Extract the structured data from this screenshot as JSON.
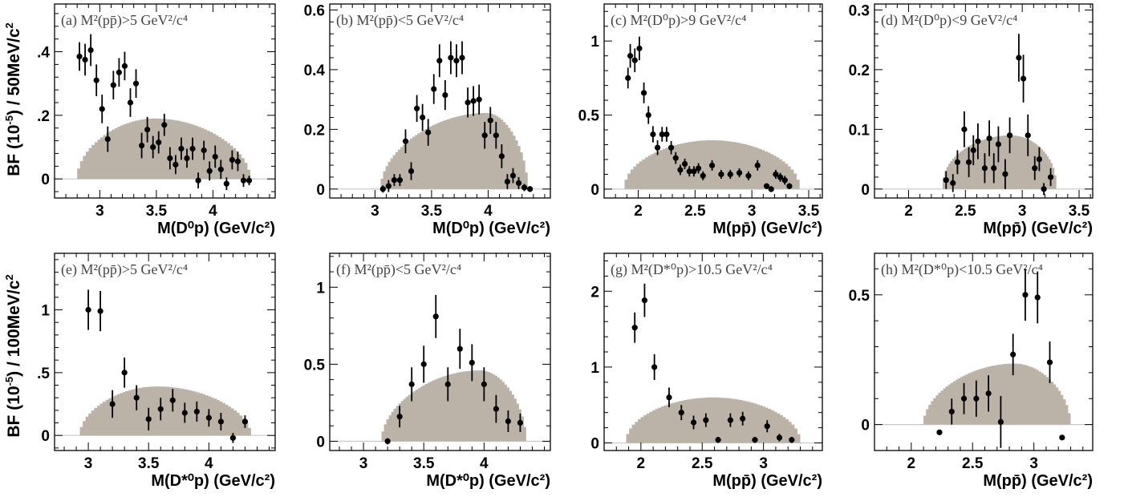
{
  "figure": {
    "ylabel_top_a": "BF (10",
    "ylabel_top_exp": "-5",
    "ylabel_top_b": ") / 50MeV/c",
    "ylabel_top_c": "2",
    "ylabel_bot_a": "BF (10",
    "ylabel_bot_exp": "-5",
    "ylabel_bot_b": ") / 100MeV/c",
    "ylabel_bot_c": "2"
  },
  "colors": {
    "band": "#bcb3a8",
    "band_edge": "#c8c8c8",
    "marker": "#000000"
  },
  "chart_data": [
    {
      "type": "scatter",
      "panel": "a",
      "label": "(a) M²(pp̄)>5 GeV²/c⁴",
      "xlabel": "M(D⁰p) (GeV/c²)",
      "xlim": [
        2.6,
        4.55
      ],
      "ylim": [
        -0.06,
        0.55
      ],
      "xticks": [
        {
          "v": 3,
          "t": "3"
        },
        {
          "v": 3.5,
          "t": "3.5"
        },
        {
          "v": 4,
          "t": "4"
        }
      ],
      "yticks": [
        {
          "v": 0,
          "t": "0"
        },
        {
          "v": 0.2,
          "t": ".2"
        },
        {
          "v": 0.4,
          "t": ".4"
        }
      ],
      "band": {
        "x0": 2.8,
        "x1": 4.33,
        "peak": 0.19,
        "skew": 0.45,
        "pow": 0.5
      },
      "points": [
        [
          2.82,
          0.385,
          0.045
        ],
        [
          2.87,
          0.375,
          0.05
        ],
        [
          2.92,
          0.405,
          0.05
        ],
        [
          2.97,
          0.31,
          0.05
        ],
        [
          3.02,
          0.22,
          0.045
        ],
        [
          3.07,
          0.125,
          0.04
        ],
        [
          3.12,
          0.295,
          0.045
        ],
        [
          3.17,
          0.335,
          0.045
        ],
        [
          3.22,
          0.355,
          0.045
        ],
        [
          3.27,
          0.24,
          0.045
        ],
        [
          3.32,
          0.3,
          0.045
        ],
        [
          3.37,
          0.105,
          0.04
        ],
        [
          3.42,
          0.155,
          0.04
        ],
        [
          3.47,
          0.1,
          0.035
        ],
        [
          3.52,
          0.115,
          0.035
        ],
        [
          3.57,
          0.17,
          0.035
        ],
        [
          3.62,
          0.065,
          0.035
        ],
        [
          3.67,
          0.045,
          0.03
        ],
        [
          3.72,
          0.095,
          0.035
        ],
        [
          3.77,
          0.065,
          0.03
        ],
        [
          3.82,
          0.095,
          0.035
        ],
        [
          3.87,
          -0.005,
          0.025
        ],
        [
          3.92,
          0.09,
          0.03
        ],
        [
          3.97,
          0.025,
          0.03
        ],
        [
          4.02,
          0.07,
          0.035
        ],
        [
          4.07,
          0.03,
          0.03
        ],
        [
          4.12,
          -0.015,
          0.02
        ],
        [
          4.17,
          0.06,
          0.03
        ],
        [
          4.22,
          0.055,
          0.03
        ],
        [
          4.27,
          -0.005,
          0.02
        ],
        [
          4.32,
          -0.005,
          0.015
        ]
      ]
    },
    {
      "type": "scatter",
      "panel": "b",
      "label": "(b) M²(pp̄)<5 GeV²/c⁴",
      "xlabel": "M(D⁰p) (GeV/c²)",
      "xlim": [
        2.6,
        4.55
      ],
      "ylim": [
        -0.03,
        0.62
      ],
      "xticks": [
        {
          "v": 3,
          "t": "3"
        },
        {
          "v": 3.5,
          "t": "3.5"
        },
        {
          "v": 4,
          "t": "4"
        }
      ],
      "yticks": [
        {
          "v": 0,
          "t": "0"
        },
        {
          "v": 0.2,
          "t": "0.2"
        },
        {
          "v": 0.4,
          "t": "0.4"
        },
        {
          "v": 0.6,
          "t": "0.6"
        }
      ],
      "band": {
        "x0": 3.05,
        "x1": 4.35,
        "peak": 0.255,
        "skew": 0.72,
        "pow": 0.5
      },
      "points": [
        [
          3.07,
          0.0,
          0.012
        ],
        [
          3.12,
          0.01,
          0.02
        ],
        [
          3.17,
          0.03,
          0.02
        ],
        [
          3.22,
          0.03,
          0.02
        ],
        [
          3.27,
          0.16,
          0.04
        ],
        [
          3.32,
          0.06,
          0.03
        ],
        [
          3.37,
          0.27,
          0.045
        ],
        [
          3.42,
          0.24,
          0.045
        ],
        [
          3.47,
          0.19,
          0.045
        ],
        [
          3.52,
          0.335,
          0.05
        ],
        [
          3.57,
          0.43,
          0.055
        ],
        [
          3.62,
          0.315,
          0.05
        ],
        [
          3.67,
          0.44,
          0.055
        ],
        [
          3.72,
          0.43,
          0.055
        ],
        [
          3.77,
          0.44,
          0.055
        ],
        [
          3.82,
          0.29,
          0.05
        ],
        [
          3.87,
          0.295,
          0.05
        ],
        [
          3.92,
          0.3,
          0.05
        ],
        [
          3.97,
          0.18,
          0.045
        ],
        [
          4.02,
          0.23,
          0.045
        ],
        [
          4.07,
          0.18,
          0.045
        ],
        [
          4.12,
          0.11,
          0.04
        ],
        [
          4.17,
          0.025,
          0.025
        ],
        [
          4.22,
          0.045,
          0.025
        ],
        [
          4.27,
          0.02,
          0.02
        ],
        [
          4.32,
          0.005,
          0.012
        ],
        [
          4.37,
          0.0,
          0.01
        ]
      ]
    },
    {
      "type": "scatter",
      "panel": "c",
      "label": "(c) M²(D⁰p)>9 GeV²/c⁴",
      "xlabel": "M(pp̄) (GeV/c²)",
      "xlim": [
        1.7,
        3.62
      ],
      "ylim": [
        -0.06,
        1.25
      ],
      "xticks": [
        {
          "v": 2,
          "t": "2"
        },
        {
          "v": 2.5,
          "t": "2.5"
        },
        {
          "v": 3,
          "t": "3"
        },
        {
          "v": 3.5,
          "t": "3.5"
        }
      ],
      "yticks": [
        {
          "v": 0,
          "t": "0"
        },
        {
          "v": 0.5,
          "t": "0.5"
        },
        {
          "v": 1,
          "t": "1"
        }
      ],
      "band": {
        "x0": 1.88,
        "x1": 3.42,
        "peak": 0.33,
        "skew": 0.5,
        "pow": 0.45
      },
      "points": [
        [
          1.91,
          0.75,
          0.07
        ],
        [
          1.93,
          0.9,
          0.08
        ],
        [
          1.97,
          0.87,
          0.08
        ],
        [
          2.01,
          0.95,
          0.08
        ],
        [
          2.05,
          0.65,
          0.07
        ],
        [
          2.09,
          0.5,
          0.06
        ],
        [
          2.13,
          0.37,
          0.055
        ],
        [
          2.17,
          0.28,
          0.05
        ],
        [
          2.21,
          0.37,
          0.05
        ],
        [
          2.25,
          0.37,
          0.05
        ],
        [
          2.29,
          0.28,
          0.045
        ],
        [
          2.33,
          0.21,
          0.04
        ],
        [
          2.37,
          0.13,
          0.035
        ],
        [
          2.41,
          0.17,
          0.035
        ],
        [
          2.45,
          0.12,
          0.035
        ],
        [
          2.49,
          0.12,
          0.035
        ],
        [
          2.53,
          0.14,
          0.035
        ],
        [
          2.57,
          0.09,
          0.03
        ],
        [
          2.65,
          0.16,
          0.035
        ],
        [
          2.73,
          0.1,
          0.03
        ],
        [
          2.81,
          0.1,
          0.03
        ],
        [
          2.89,
          0.11,
          0.03
        ],
        [
          2.97,
          0.09,
          0.03
        ],
        [
          3.05,
          0.16,
          0.035
        ],
        [
          3.13,
          0.02,
          0.02
        ],
        [
          3.17,
          0.0,
          0.02
        ],
        [
          3.21,
          0.1,
          0.03
        ],
        [
          3.25,
          0.08,
          0.03
        ],
        [
          3.29,
          0.06,
          0.03
        ],
        [
          3.33,
          0.02,
          0.02
        ]
      ]
    },
    {
      "type": "scatter",
      "panel": "d",
      "label": "(d) M²(D⁰p)<9 GeV²/c⁴",
      "xlabel": "M(pp̄) (GeV/c²)",
      "xlim": [
        1.7,
        3.62
      ],
      "ylim": [
        -0.015,
        0.31
      ],
      "xticks": [
        {
          "v": 2,
          "t": "2"
        },
        {
          "v": 2.5,
          "t": "2.5"
        },
        {
          "v": 3,
          "t": "3"
        },
        {
          "v": 3.5,
          "t": "3.5"
        }
      ],
      "yticks": [
        {
          "v": 0,
          "t": "0"
        },
        {
          "v": 0.1,
          "t": "0.1"
        },
        {
          "v": 0.2,
          "t": "0.2"
        },
        {
          "v": 0.3,
          "t": "0.3"
        }
      ],
      "band": {
        "x0": 2.3,
        "x1": 3.3,
        "peak": 0.09,
        "skew": 0.6,
        "pow": 0.4
      },
      "points": [
        [
          2.33,
          0.015,
          0.015
        ],
        [
          2.39,
          0.01,
          0.015
        ],
        [
          2.43,
          0.045,
          0.02
        ],
        [
          2.49,
          0.1,
          0.03
        ],
        [
          2.53,
          0.045,
          0.025
        ],
        [
          2.57,
          0.065,
          0.025
        ],
        [
          2.61,
          0.08,
          0.03
        ],
        [
          2.67,
          0.035,
          0.025
        ],
        [
          2.71,
          0.085,
          0.03
        ],
        [
          2.75,
          0.035,
          0.025
        ],
        [
          2.79,
          0.075,
          0.03
        ],
        [
          2.85,
          0.025,
          0.025
        ],
        [
          2.89,
          0.09,
          0.03
        ],
        [
          2.97,
          0.22,
          0.04
        ],
        [
          3.01,
          0.185,
          0.04
        ],
        [
          3.05,
          0.09,
          0.035
        ],
        [
          3.11,
          0.035,
          0.02
        ],
        [
          3.15,
          0.05,
          0.02
        ],
        [
          3.19,
          0.0,
          0.01
        ],
        [
          3.25,
          0.02,
          0.015
        ]
      ]
    },
    {
      "type": "scatter",
      "panel": "e",
      "label": "(e) M²(pp̄)>5 GeV²/c⁴",
      "xlabel": "M(D*⁰p) (GeV/c²)",
      "xlim": [
        2.72,
        4.55
      ],
      "ylim": [
        -0.12,
        1.45
      ],
      "xticks": [
        {
          "v": 3,
          "t": "3"
        },
        {
          "v": 3.5,
          "t": "3.5"
        },
        {
          "v": 4,
          "t": "4"
        }
      ],
      "yticks": [
        {
          "v": 0,
          "t": "0"
        },
        {
          "v": 0.5,
          "t": ".5"
        },
        {
          "v": 1,
          "t": "1"
        }
      ],
      "band": {
        "x0": 2.93,
        "x1": 4.35,
        "peak": 0.39,
        "skew": 0.45,
        "pow": 0.5
      },
      "points": [
        [
          3.0,
          1.0,
          0.16
        ],
        [
          3.1,
          0.99,
          0.16
        ],
        [
          3.2,
          0.25,
          0.11
        ],
        [
          3.3,
          0.5,
          0.12
        ],
        [
          3.4,
          0.3,
          0.1
        ],
        [
          3.5,
          0.13,
          0.09
        ],
        [
          3.6,
          0.21,
          0.09
        ],
        [
          3.7,
          0.28,
          0.09
        ],
        [
          3.8,
          0.18,
          0.08
        ],
        [
          3.9,
          0.19,
          0.08
        ],
        [
          4.0,
          0.14,
          0.07
        ],
        [
          4.1,
          0.11,
          0.07
        ],
        [
          4.2,
          -0.02,
          0.04
        ],
        [
          4.3,
          0.11,
          0.05
        ]
      ]
    },
    {
      "type": "scatter",
      "panel": "f",
      "label": "(f) M²(pp̄)<5 GeV²/c⁴",
      "xlabel": "M(D*⁰p) (GeV/c²)",
      "xlim": [
        2.72,
        4.55
      ],
      "ylim": [
        -0.06,
        1.22
      ],
      "xticks": [
        {
          "v": 3,
          "t": "3"
        },
        {
          "v": 3.5,
          "t": "3.5"
        },
        {
          "v": 4,
          "t": "4"
        }
      ],
      "yticks": [
        {
          "v": 0,
          "t": "0"
        },
        {
          "v": 0.5,
          "t": "0.5"
        },
        {
          "v": 1,
          "t": "1"
        }
      ],
      "band": {
        "x0": 3.15,
        "x1": 4.35,
        "peak": 0.46,
        "skew": 0.68,
        "pow": 0.5
      },
      "points": [
        [
          3.2,
          0.0,
          0.02
        ],
        [
          3.3,
          0.16,
          0.07
        ],
        [
          3.4,
          0.37,
          0.11
        ],
        [
          3.5,
          0.5,
          0.12
        ],
        [
          3.6,
          0.81,
          0.14
        ],
        [
          3.7,
          0.37,
          0.11
        ],
        [
          3.8,
          0.6,
          0.13
        ],
        [
          3.9,
          0.51,
          0.12
        ],
        [
          4.0,
          0.37,
          0.11
        ],
        [
          4.1,
          0.21,
          0.09
        ],
        [
          4.2,
          0.13,
          0.07
        ],
        [
          4.3,
          0.12,
          0.06
        ]
      ]
    },
    {
      "type": "scatter",
      "panel": "g",
      "label": "(g) M²(D*⁰p)>10.5 GeV²/c⁴",
      "xlabel": "M(pp̄) (GeV/c²)",
      "xlim": [
        1.7,
        3.48
      ],
      "ylim": [
        -0.1,
        2.5
      ],
      "xticks": [
        {
          "v": 2,
          "t": "2"
        },
        {
          "v": 2.5,
          "t": "2.5"
        },
        {
          "v": 3,
          "t": "3"
        }
      ],
      "yticks": [
        {
          "v": 0,
          "t": "0"
        },
        {
          "v": 1,
          "t": "1"
        },
        {
          "v": 2,
          "t": "2"
        }
      ],
      "band": {
        "x0": 1.88,
        "x1": 3.3,
        "peak": 0.6,
        "skew": 0.5,
        "pow": 0.45
      },
      "points": [
        [
          1.95,
          1.52,
          0.2
        ],
        [
          2.03,
          1.88,
          0.22
        ],
        [
          2.11,
          1.0,
          0.17
        ],
        [
          2.23,
          0.6,
          0.13
        ],
        [
          2.33,
          0.4,
          0.1
        ],
        [
          2.43,
          0.27,
          0.09
        ],
        [
          2.53,
          0.3,
          0.09
        ],
        [
          2.63,
          0.04,
          0.04
        ],
        [
          2.73,
          0.3,
          0.09
        ],
        [
          2.83,
          0.32,
          0.09
        ],
        [
          2.93,
          0.04,
          0.04
        ],
        [
          3.03,
          0.22,
          0.08
        ],
        [
          3.13,
          0.07,
          0.05
        ],
        [
          3.23,
          0.04,
          0.04
        ]
      ]
    },
    {
      "type": "scatter",
      "panel": "h",
      "label": "(h) M²(D*⁰p)<10.5 GeV²/c⁴",
      "xlabel": "M(pp̄) (GeV/c²)",
      "xlim": [
        1.7,
        3.48
      ],
      "ylim": [
        -0.1,
        0.66
      ],
      "xticks": [
        {
          "v": 2,
          "t": "2"
        },
        {
          "v": 2.5,
          "t": "2.5"
        },
        {
          "v": 3,
          "t": "3"
        }
      ],
      "yticks": [
        {
          "v": 0,
          "t": "0"
        },
        {
          "v": 0.5,
          "t": "0.5"
        }
      ],
      "band": {
        "x0": 2.1,
        "x1": 3.3,
        "peak": 0.235,
        "skew": 0.62,
        "pow": 0.5
      },
      "points": [
        [
          2.23,
          -0.03,
          0.01
        ],
        [
          2.33,
          0.05,
          0.05
        ],
        [
          2.43,
          0.1,
          0.06
        ],
        [
          2.53,
          0.1,
          0.07
        ],
        [
          2.63,
          0.12,
          0.07
        ],
        [
          2.73,
          0.01,
          0.1
        ],
        [
          2.83,
          0.27,
          0.08
        ],
        [
          2.93,
          0.5,
          0.1
        ],
        [
          3.03,
          0.49,
          0.1
        ],
        [
          3.13,
          0.24,
          0.08
        ],
        [
          3.23,
          -0.05,
          0.01
        ]
      ]
    }
  ]
}
